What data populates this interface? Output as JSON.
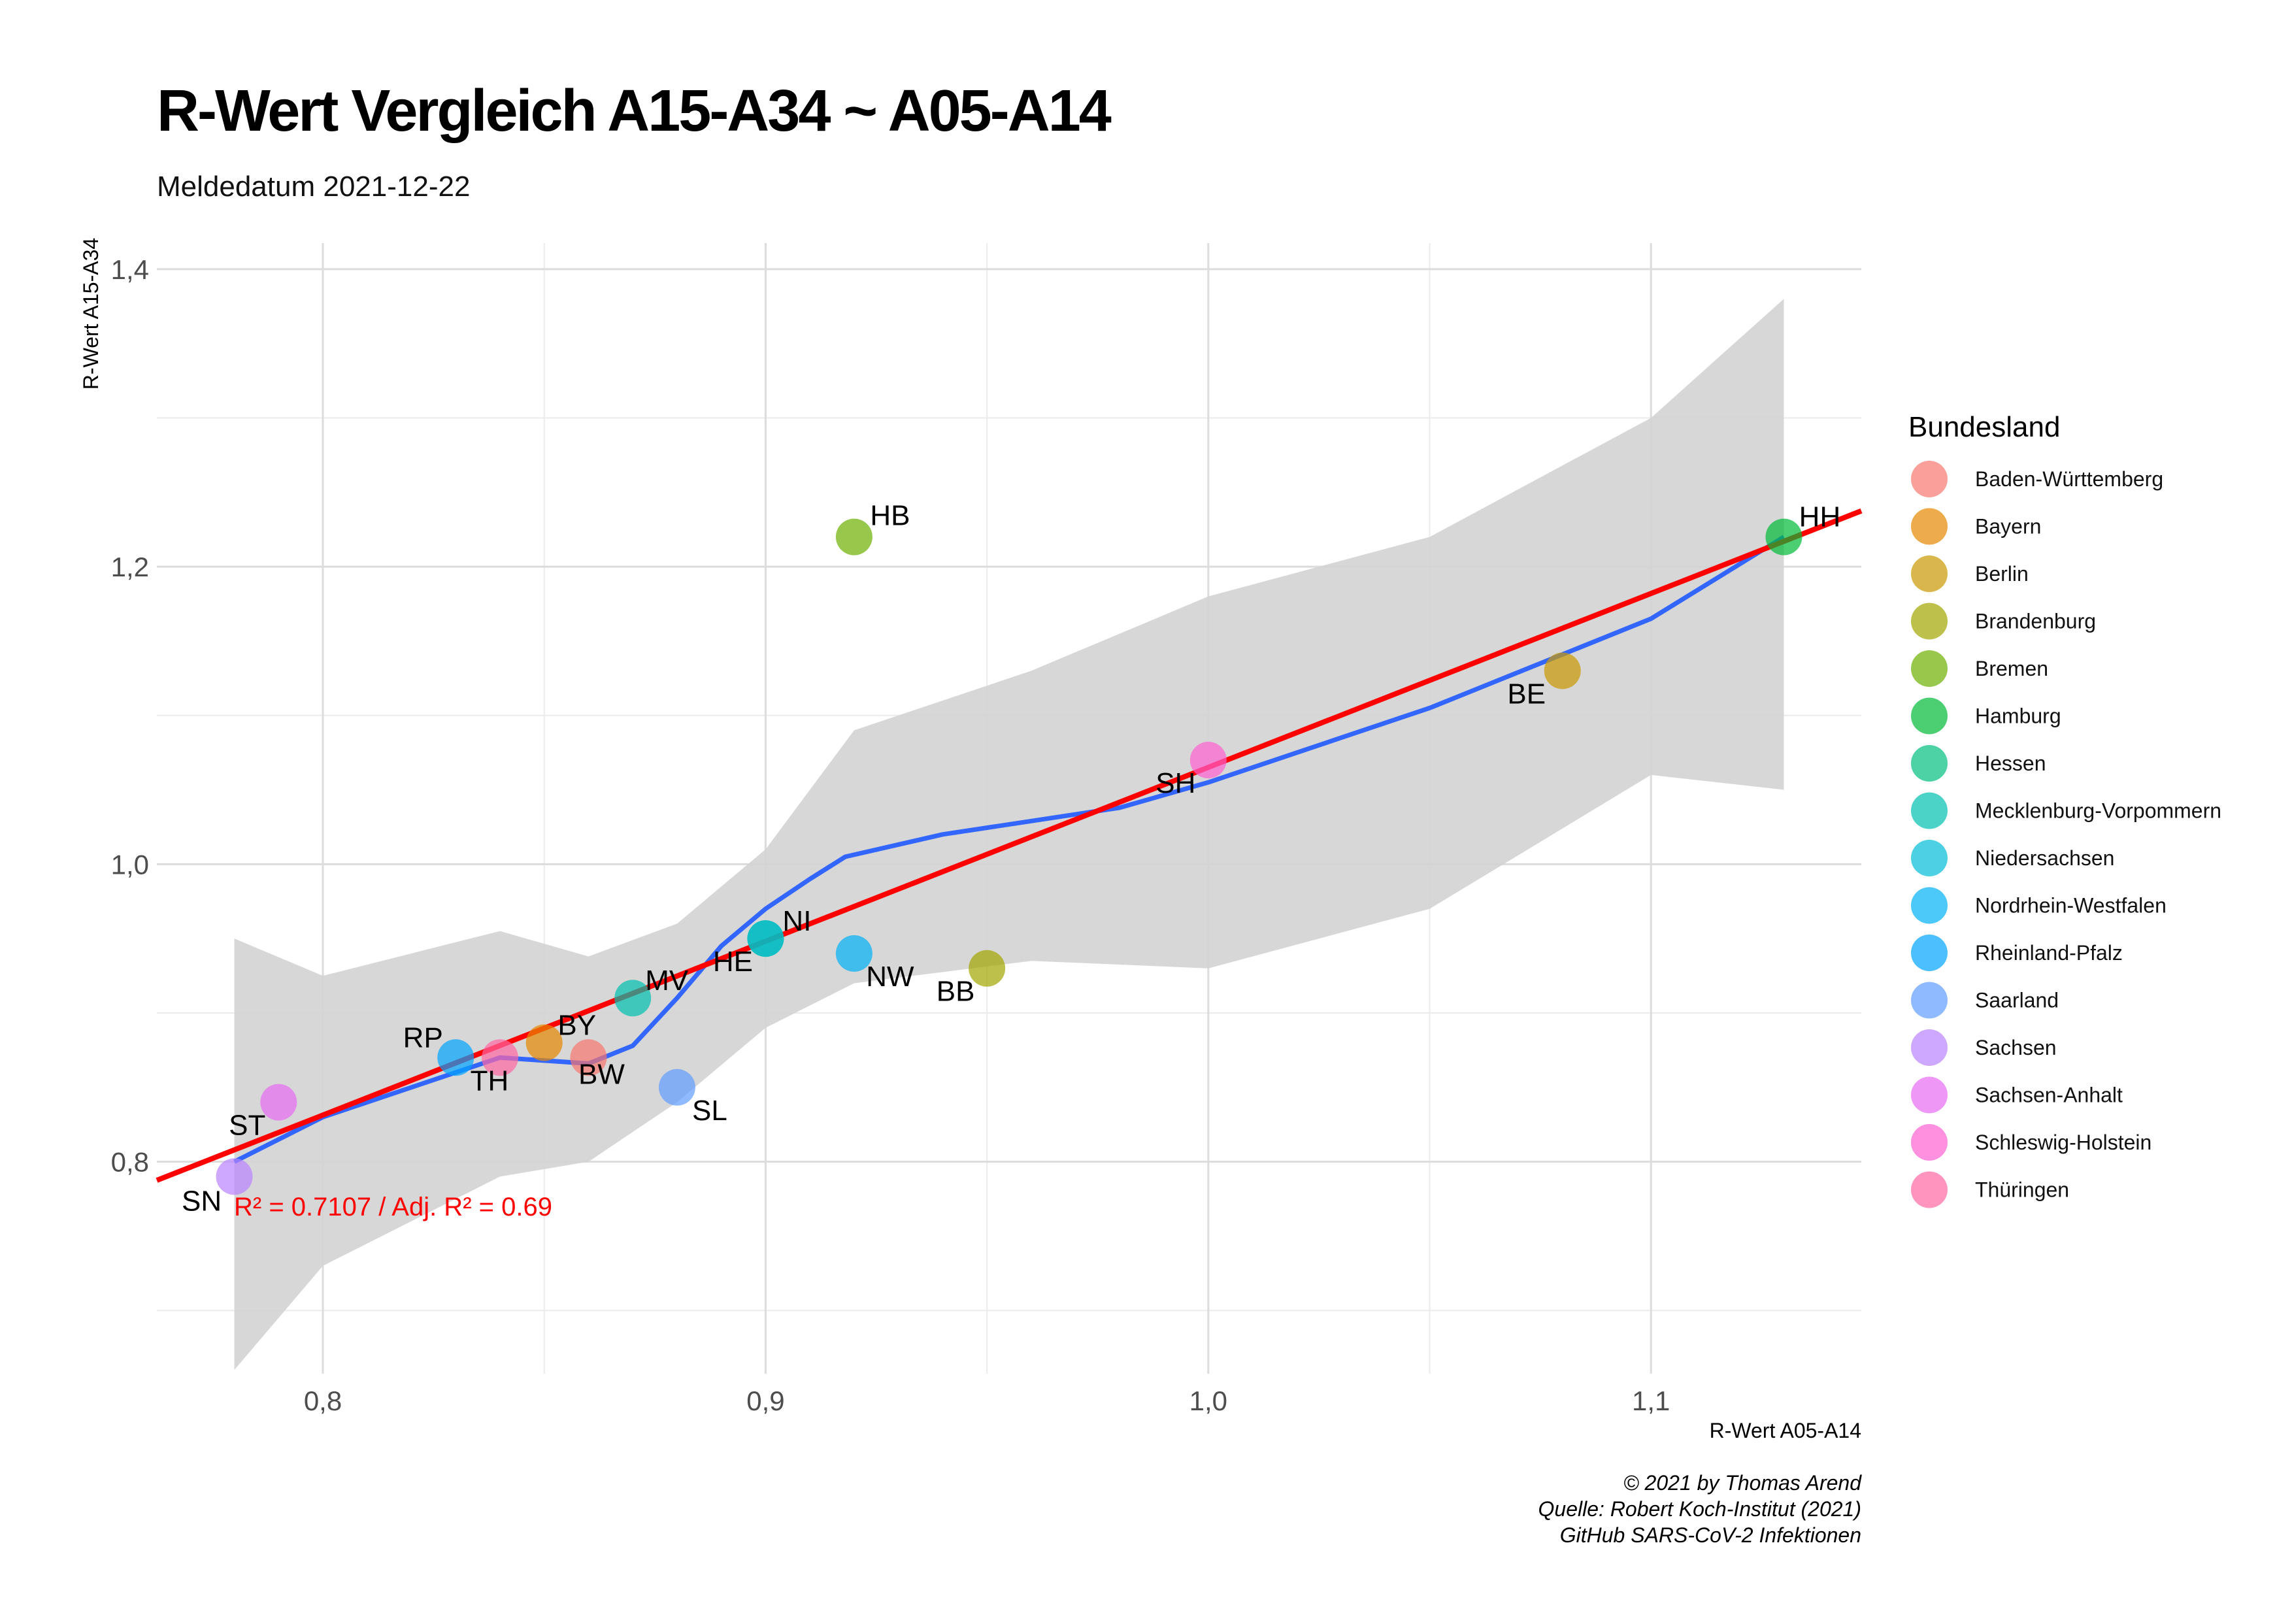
{
  "chart_data": {
    "type": "scatter",
    "title": "R-Wert Vergleich A15-A34 ~ A05-A14",
    "subtitle": "Meldedatum 2021-12-22",
    "xlabel": "R-Wert A05-A14",
    "ylabel": "R-Wert A15-A34",
    "xlim": [
      0.7625,
      1.1475
    ],
    "ylim": [
      0.6575,
      1.4175
    ],
    "x_ticks": [
      0.8,
      0.9,
      1.0,
      1.1
    ],
    "x_tick_labels": [
      "0,8",
      "0,9",
      "1,0",
      "1,1"
    ],
    "x_minor_gridlines": [
      0.85,
      0.95,
      1.05
    ],
    "y_ticks": [
      0.8,
      1.0,
      1.2,
      1.4
    ],
    "y_tick_labels": [
      "0,8",
      "1,0",
      "1,2",
      "1,4"
    ],
    "y_minor_gridlines": [
      0.7,
      0.9,
      1.1,
      1.3
    ],
    "grid": true,
    "legend": {
      "title": "Bundesland",
      "position": "right",
      "entries": [
        {
          "name": "Baden-Württemberg",
          "color": "#F8766D"
        },
        {
          "name": "Bayern",
          "color": "#E58700"
        },
        {
          "name": "Berlin",
          "color": "#C99800"
        },
        {
          "name": "Brandenburg",
          "color": "#A3A500"
        },
        {
          "name": "Bremen",
          "color": "#6BB100"
        },
        {
          "name": "Hamburg",
          "color": "#00BA38"
        },
        {
          "name": "Hessen",
          "color": "#00BF7D"
        },
        {
          "name": "Mecklenburg-Vorpommern",
          "color": "#00C0AF"
        },
        {
          "name": "Niedersachsen",
          "color": "#00BCD8"
        },
        {
          "name": "Nordrhein-Westfalen",
          "color": "#00B0F6"
        },
        {
          "name": "Rheinland-Pfalz",
          "color": "#00A4FF"
        },
        {
          "name": "Saarland",
          "color": "#619CFF"
        },
        {
          "name": "Sachsen",
          "color": "#B983FF"
        },
        {
          "name": "Sachsen-Anhalt",
          "color": "#E76BF3"
        },
        {
          "name": "Schleswig-Holstein",
          "color": "#FD61D1"
        },
        {
          "name": "Thüringen",
          "color": "#FF67A4"
        }
      ]
    },
    "points": [
      {
        "label": "BW",
        "x": 0.86,
        "y": 0.87,
        "color": "#F8766D"
      },
      {
        "label": "BY",
        "x": 0.85,
        "y": 0.88,
        "color": "#E58700"
      },
      {
        "label": "BE",
        "x": 1.08,
        "y": 1.13,
        "color": "#C99800"
      },
      {
        "label": "BB",
        "x": 0.95,
        "y": 0.93,
        "color": "#A3A500"
      },
      {
        "label": "HB",
        "x": 0.92,
        "y": 1.22,
        "color": "#6BB100"
      },
      {
        "label": "HH",
        "x": 1.13,
        "y": 1.22,
        "color": "#00BA38"
      },
      {
        "label": "HE",
        "x": 0.9,
        "y": 0.95,
        "color": "#00BF7D"
      },
      {
        "label": "MV",
        "x": 0.87,
        "y": 0.91,
        "color": "#00C0AF"
      },
      {
        "label": "NI",
        "x": 0.9,
        "y": 0.95,
        "color": "#00BCD8"
      },
      {
        "label": "NW",
        "x": 0.92,
        "y": 0.94,
        "color": "#00B0F6"
      },
      {
        "label": "RP",
        "x": 0.83,
        "y": 0.87,
        "color": "#00A4FF"
      },
      {
        "label": "SL",
        "x": 0.88,
        "y": 0.85,
        "color": "#619CFF"
      },
      {
        "label": "SN",
        "x": 0.78,
        "y": 0.79,
        "color": "#B983FF"
      },
      {
        "label": "ST",
        "x": 0.79,
        "y": 0.84,
        "color": "#E76BF3"
      },
      {
        "label": "SH",
        "x": 1.0,
        "y": 1.07,
        "color": "#FD61D1"
      },
      {
        "label": "TH",
        "x": 0.84,
        "y": 0.87,
        "color": "#FF67A4"
      }
    ],
    "regression_line": {
      "color": "#FF0000",
      "x": [
        0.7625,
        1.1475
      ],
      "y": [
        0.7875,
        1.2375
      ]
    },
    "smooth_curve": {
      "color": "#3366FF",
      "points": [
        [
          0.78,
          0.8
        ],
        [
          0.8,
          0.83
        ],
        [
          0.82,
          0.85
        ],
        [
          0.84,
          0.87
        ],
        [
          0.86,
          0.866
        ],
        [
          0.87,
          0.878
        ],
        [
          0.88,
          0.91
        ],
        [
          0.89,
          0.945
        ],
        [
          0.9,
          0.97
        ],
        [
          0.91,
          0.99
        ],
        [
          0.918,
          1.005
        ],
        [
          0.94,
          1.02
        ],
        [
          0.98,
          1.038
        ],
        [
          1.0,
          1.055
        ],
        [
          1.05,
          1.105
        ],
        [
          1.1,
          1.165
        ],
        [
          1.13,
          1.22
        ]
      ]
    },
    "confidence_band": {
      "color": "#D3D3D3",
      "upper": [
        [
          0.78,
          0.95
        ],
        [
          0.8,
          0.925
        ],
        [
          0.82,
          0.94
        ],
        [
          0.84,
          0.955
        ],
        [
          0.86,
          0.938
        ],
        [
          0.88,
          0.96
        ],
        [
          0.9,
          1.01
        ],
        [
          0.92,
          1.09
        ],
        [
          0.96,
          1.13
        ],
        [
          1.0,
          1.18
        ],
        [
          1.05,
          1.22
        ],
        [
          1.1,
          1.3
        ],
        [
          1.13,
          1.38
        ]
      ],
      "lower": [
        [
          0.78,
          0.66
        ],
        [
          0.8,
          0.73
        ],
        [
          0.82,
          0.76
        ],
        [
          0.84,
          0.79
        ],
        [
          0.86,
          0.8
        ],
        [
          0.88,
          0.84
        ],
        [
          0.9,
          0.89
        ],
        [
          0.92,
          0.92
        ],
        [
          0.96,
          0.935
        ],
        [
          1.0,
          0.93
        ],
        [
          1.05,
          0.97
        ],
        [
          1.1,
          1.06
        ],
        [
          1.13,
          1.05
        ]
      ]
    },
    "annotation": "R² = 0.7107 / Adj. R² =  0.69"
  },
  "caption": {
    "line1": "© 2021 by Thomas Arend",
    "line2": "Quelle: Robert Koch-Institut (2021)",
    "line3": "GitHub SARS-CoV-2 Infektionen"
  }
}
